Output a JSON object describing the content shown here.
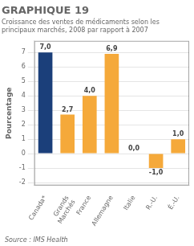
{
  "chart_data": {
    "type": "bar",
    "title": "GRAPHIQUE 19",
    "subtitle": "Croissance des ventes de médicaments selon les\nprincipaux marchés, 2008 par rapport à 2007",
    "y_label": "Pourcentage",
    "annotations": [
      "Source : IMS Health"
    ],
    "categories": [
      "Canada*",
      "Grands\nMarchés",
      "France",
      "Allemagne",
      "Italie",
      "R.-U.",
      "É.-U."
    ],
    "values": [
      7.0,
      2.7,
      4.0,
      6.9,
      0.0,
      -1.0,
      1.0
    ],
    "value_labels": [
      "7,0",
      "2,7",
      "4,0",
      "6,9",
      "0,0",
      "-1,0",
      "1,0"
    ],
    "data_labels": true,
    "colors": [
      "#1b3f7a",
      "#f5a93a",
      "#f5a93a",
      "#f5a93a",
      "#f5a93a",
      "#f5a93a",
      "#f5a93a"
    ],
    "ylim": [
      -2.2,
      7.8
    ],
    "yticks": [
      -2,
      -1,
      0,
      1,
      2,
      3,
      4,
      5,
      6,
      7
    ],
    "grid": true
  }
}
